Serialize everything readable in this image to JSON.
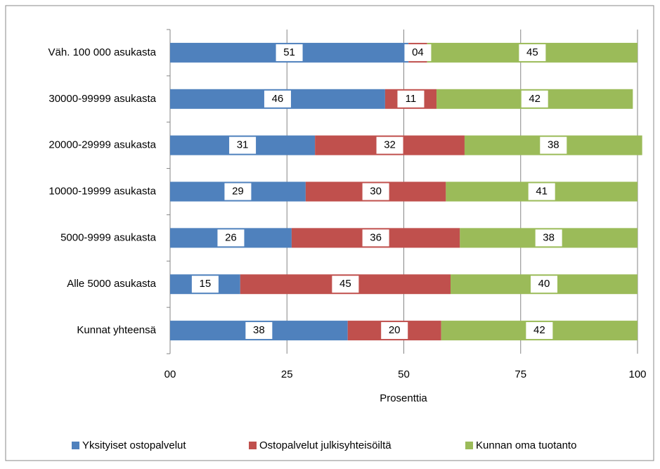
{
  "chart_data": {
    "type": "stacked_bar_horizontal",
    "x_label": "Prosenttia",
    "categories": [
      "Väh. 100 000 asukasta",
      "30000-99999 asukasta",
      "20000-29999 asukasta",
      "10000-19999 asukasta",
      "5000-9999 asukasta",
      "Alle 5000 asukasta",
      "Kunnat yhteensä"
    ],
    "series": [
      {
        "name": "Yksityiset ostopalvelut",
        "color": "#4f81bd",
        "values": [
          51,
          46,
          31,
          29,
          26,
          15,
          38
        ]
      },
      {
        "name": "Ostopalvelut julkisyhteisöiltä",
        "color": "#c0504d",
        "values": [
          4,
          11,
          32,
          30,
          36,
          45,
          20
        ],
        "value_labels": [
          "04",
          "11",
          "32",
          "30",
          "36",
          "45",
          "20"
        ]
      },
      {
        "name": "Kunnan oma tuotanto",
        "color": "#9bbb59",
        "values": [
          45,
          42,
          38,
          41,
          38,
          40,
          42
        ]
      }
    ],
    "xlim": [
      0,
      100
    ],
    "xticks": [
      {
        "value": 0,
        "label": "00"
      },
      25,
      50,
      75,
      100
    ],
    "grid": true,
    "legend": "bottom"
  }
}
